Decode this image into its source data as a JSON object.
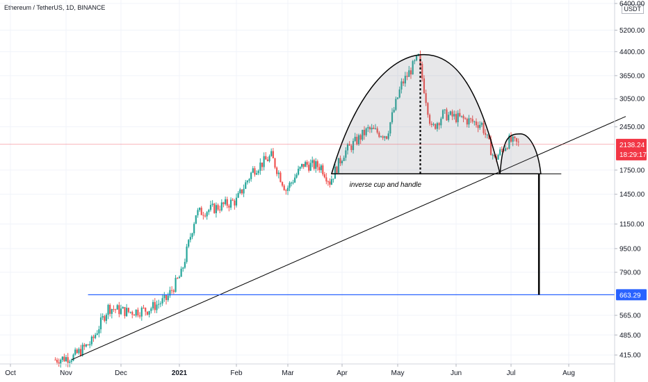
{
  "header": {
    "title": "Ethereum / TetherUS, 1D, BINANCE",
    "unit": "USDT"
  },
  "chart_data": {
    "type": "candlestick",
    "symbol": "Ethereum / TetherUS",
    "interval": "1D",
    "exchange": "BINANCE",
    "y_scale": "log",
    "ylim": [
      385,
      6400
    ],
    "y_ticks": [
      "6400.00",
      "5200.00",
      "4400.00",
      "3650.00",
      "3050.00",
      "2450.00",
      "1750.00",
      "1450.00",
      "1150.00",
      "950.00",
      "790.00",
      "565.00",
      "485.00",
      "415.00"
    ],
    "x_ticks": [
      {
        "label": "Oct",
        "bold": false
      },
      {
        "label": "Nov",
        "bold": false
      },
      {
        "label": "Dec",
        "bold": false
      },
      {
        "label": "2021",
        "bold": true
      },
      {
        "label": "Feb",
        "bold": false
      },
      {
        "label": "Mar",
        "bold": false
      },
      {
        "label": "Apr",
        "bold": false
      },
      {
        "label": "May",
        "bold": false
      },
      {
        "label": "Jun",
        "bold": false
      },
      {
        "label": "Jul",
        "bold": false
      },
      {
        "label": "Aug",
        "bold": false
      }
    ],
    "price_path": [
      {
        "date": "2020-10-26",
        "close": 400
      },
      {
        "date": "2020-11-05",
        "close": 410
      },
      {
        "date": "2020-11-15",
        "close": 460
      },
      {
        "date": "2020-11-24",
        "close": 600
      },
      {
        "date": "2020-12-05",
        "close": 580
      },
      {
        "date": "2020-12-15",
        "close": 590
      },
      {
        "date": "2020-12-25",
        "close": 640
      },
      {
        "date": "2021-01-02",
        "close": 780
      },
      {
        "date": "2021-01-10",
        "close": 1250
      },
      {
        "date": "2021-01-20",
        "close": 1300
      },
      {
        "date": "2021-02-01",
        "close": 1380
      },
      {
        "date": "2021-02-10",
        "close": 1750
      },
      {
        "date": "2021-02-20",
        "close": 1950
      },
      {
        "date": "2021-02-28",
        "close": 1500
      },
      {
        "date": "2021-03-10",
        "close": 1830
      },
      {
        "date": "2021-03-20",
        "close": 1800
      },
      {
        "date": "2021-03-25",
        "close": 1600
      },
      {
        "date": "2021-04-02",
        "close": 2000
      },
      {
        "date": "2021-04-15",
        "close": 2400
      },
      {
        "date": "2021-04-25",
        "close": 2300
      },
      {
        "date": "2021-05-03",
        "close": 3400
      },
      {
        "date": "2021-05-12",
        "close": 4200
      },
      {
        "date": "2021-05-19",
        "close": 2400
      },
      {
        "date": "2021-05-25",
        "close": 2700
      },
      {
        "date": "2021-06-05",
        "close": 2600
      },
      {
        "date": "2021-06-15",
        "close": 2500
      },
      {
        "date": "2021-06-22",
        "close": 1900
      },
      {
        "date": "2021-06-30",
        "close": 2200
      },
      {
        "date": "2021-07-05",
        "close": 2138.24
      }
    ],
    "last_price": {
      "value": "2138.24",
      "countdown": "18:29:17",
      "color": "#f23645"
    },
    "support_line": {
      "value": "663.29",
      "color": "#2962ff"
    },
    "neckline": {
      "value": 1700
    },
    "annotation": "inverse cup and handle",
    "colors": {
      "up": "#26a69a",
      "down": "#ef5350"
    }
  }
}
